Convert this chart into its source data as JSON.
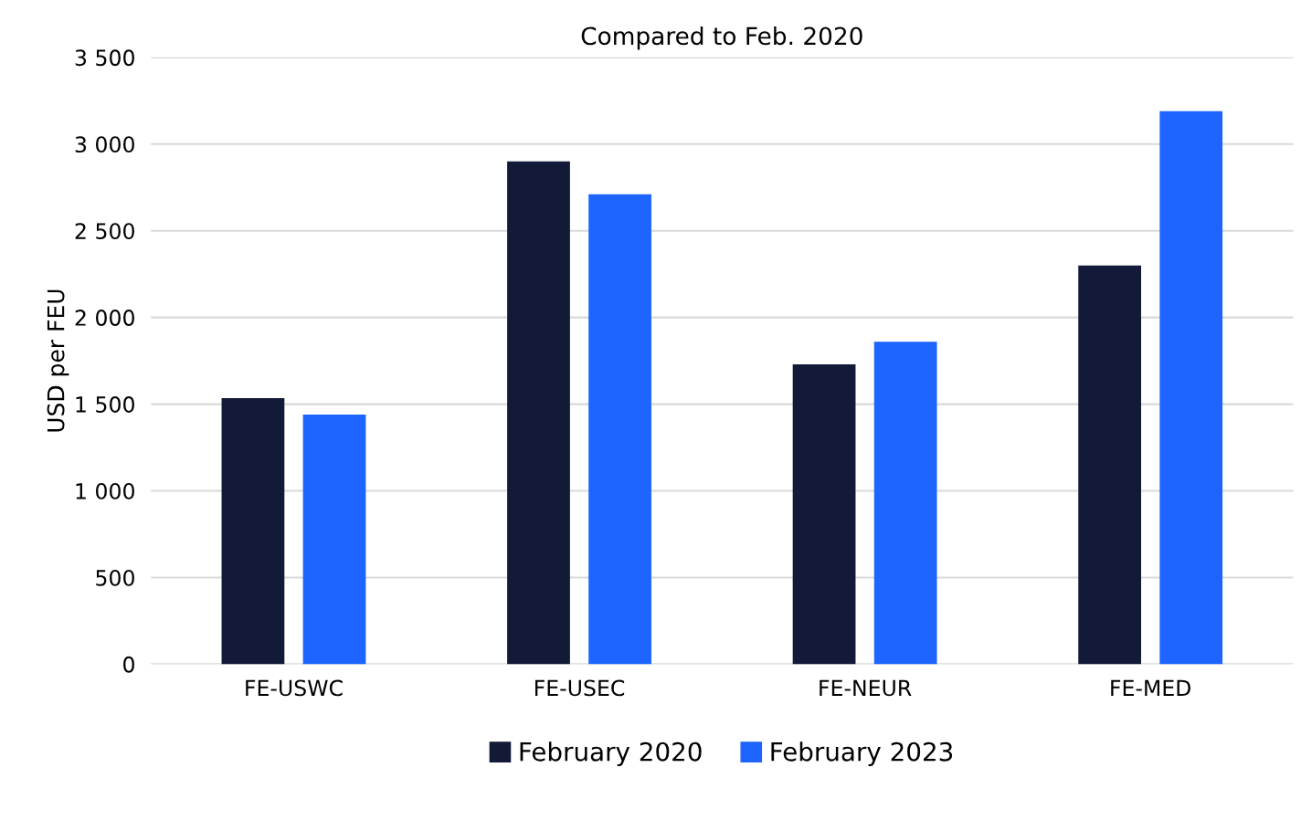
{
  "chart_data": {
    "type": "bar",
    "title": "Compared to Feb. 2020",
    "ylabel": "USD per FEU",
    "categories": [
      "FE-USWC",
      "FE-USEC",
      "FE-NEUR",
      "FE-MED"
    ],
    "series": [
      {
        "name": "February 2020",
        "color": "#121a38",
        "values": [
          1535,
          2900,
          1730,
          2300
        ]
      },
      {
        "name": "February 2023",
        "color": "#1e64ff",
        "values": [
          1440,
          2710,
          1860,
          3190
        ]
      }
    ],
    "ylim": [
      0,
      3500
    ],
    "yticks": [
      0,
      500,
      {
        "value": 1000,
        "label": "1 000"
      },
      {
        "value": 1500,
        "label": "1 500"
      },
      {
        "value": 2000,
        "label": "2 000"
      },
      {
        "value": 2500,
        "label": "2 500"
      },
      {
        "value": 3000,
        "label": "3 000"
      },
      {
        "value": 3500,
        "label": "3 500"
      }
    ],
    "grid": "y",
    "legend": "bottom"
  }
}
